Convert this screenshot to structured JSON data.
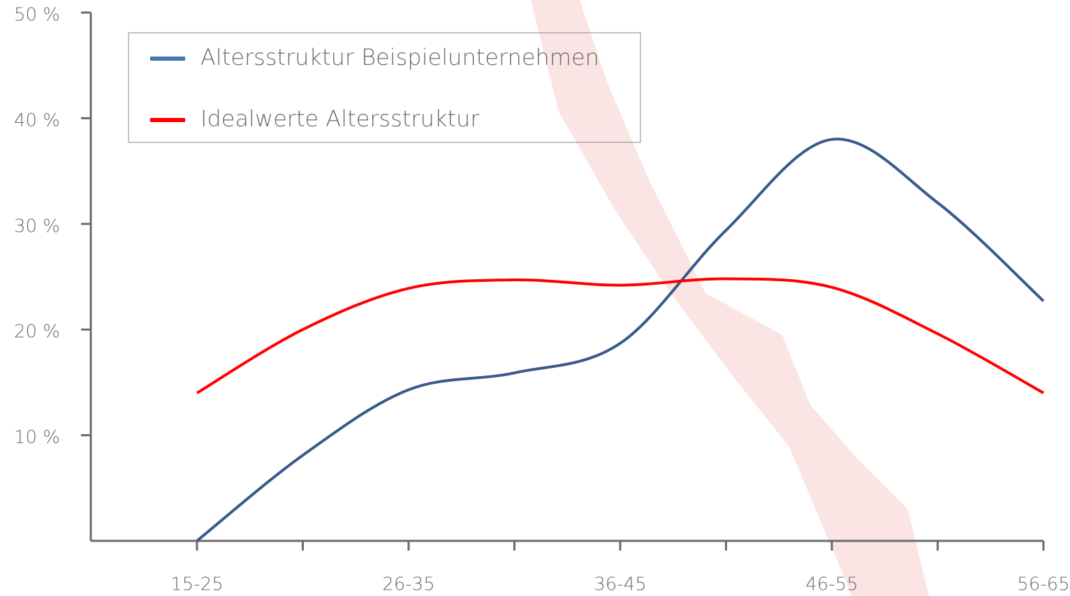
{
  "chart_data": {
    "type": "line",
    "categories": [
      "15-25",
      null,
      "26-35",
      null,
      "36-45",
      null,
      "46-55",
      null,
      "56-65"
    ],
    "series": [
      {
        "name": "Altersstruktur Beispielunternehmen",
        "color": "#3a5a8c",
        "legend_color": "#4a76b0",
        "values": [
          0,
          8.1,
          14.3,
          15.9,
          18.7,
          29.4,
          38,
          32,
          22.7
        ]
      },
      {
        "name": "Idealwerte Altersstruktur",
        "color": "#ff0000",
        "values": [
          14,
          20,
          23.9,
          24.7,
          24.2,
          24.8,
          24,
          19.6,
          14
        ]
      }
    ],
    "ylim": [
      0,
      50
    ],
    "yticks": [
      {
        "value": 10,
        "label": "10 %"
      },
      {
        "value": 20,
        "label": "20 %"
      },
      {
        "value": 30,
        "label": "30 %"
      },
      {
        "value": 40,
        "label": "40 %"
      },
      {
        "value": 50,
        "label": "50 %"
      }
    ],
    "smooth": true
  }
}
